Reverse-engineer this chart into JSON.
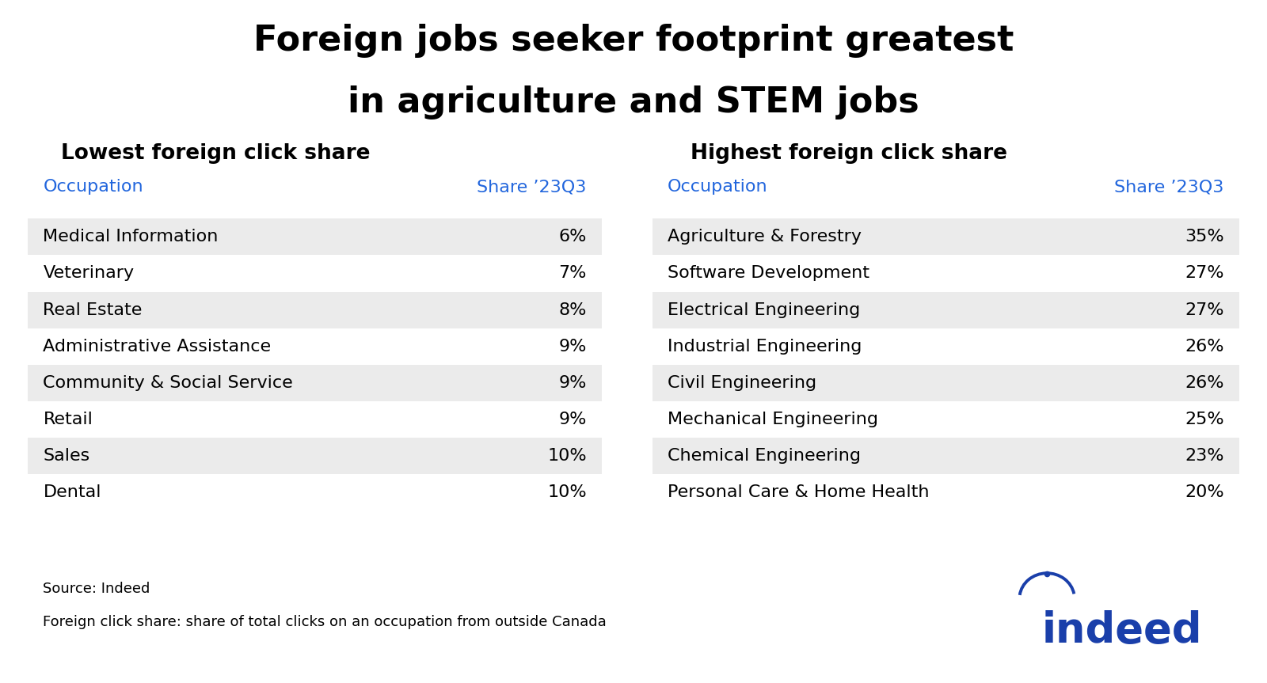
{
  "title_line1": "Foreign jobs seeker footprint greatest",
  "title_line2": "in agriculture and STEM jobs",
  "left_header": "Lowest foreign click share",
  "right_header": "Highest foreign click share",
  "col_header_occupation": "Occupation",
  "col_header_share": "Share ’23Q3",
  "header_color": "#2266dd",
  "left_occupations": [
    "Medical Information",
    "Veterinary",
    "Real Estate",
    "Administrative Assistance",
    "Community & Social Service",
    "Retail",
    "Sales",
    "Dental"
  ],
  "left_shares": [
    "6%",
    "7%",
    "8%",
    "9%",
    "9%",
    "9%",
    "10%",
    "10%"
  ],
  "right_occupations": [
    "Agriculture & Forestry",
    "Software Development",
    "Electrical Engineering",
    "Industrial Engineering",
    "Civil Engineering",
    "Mechanical Engineering",
    "Chemical Engineering",
    "Personal Care & Home Health"
  ],
  "right_shares": [
    "35%",
    "27%",
    "27%",
    "26%",
    "26%",
    "25%",
    "23%",
    "20%"
  ],
  "row_colors": [
    "#ebebeb",
    "#ffffff"
  ],
  "source_text": "Source: Indeed",
  "footnote_text": "Foreign click share: share of total clicks on an occupation from outside Canada",
  "indeed_color": "#1a3faa",
  "background_color": "#ffffff",
  "text_color": "#000000",
  "title_fontsize": 32,
  "header_fontsize": 19,
  "col_header_fontsize": 16,
  "data_fontsize": 16,
  "footnote_fontsize": 13
}
